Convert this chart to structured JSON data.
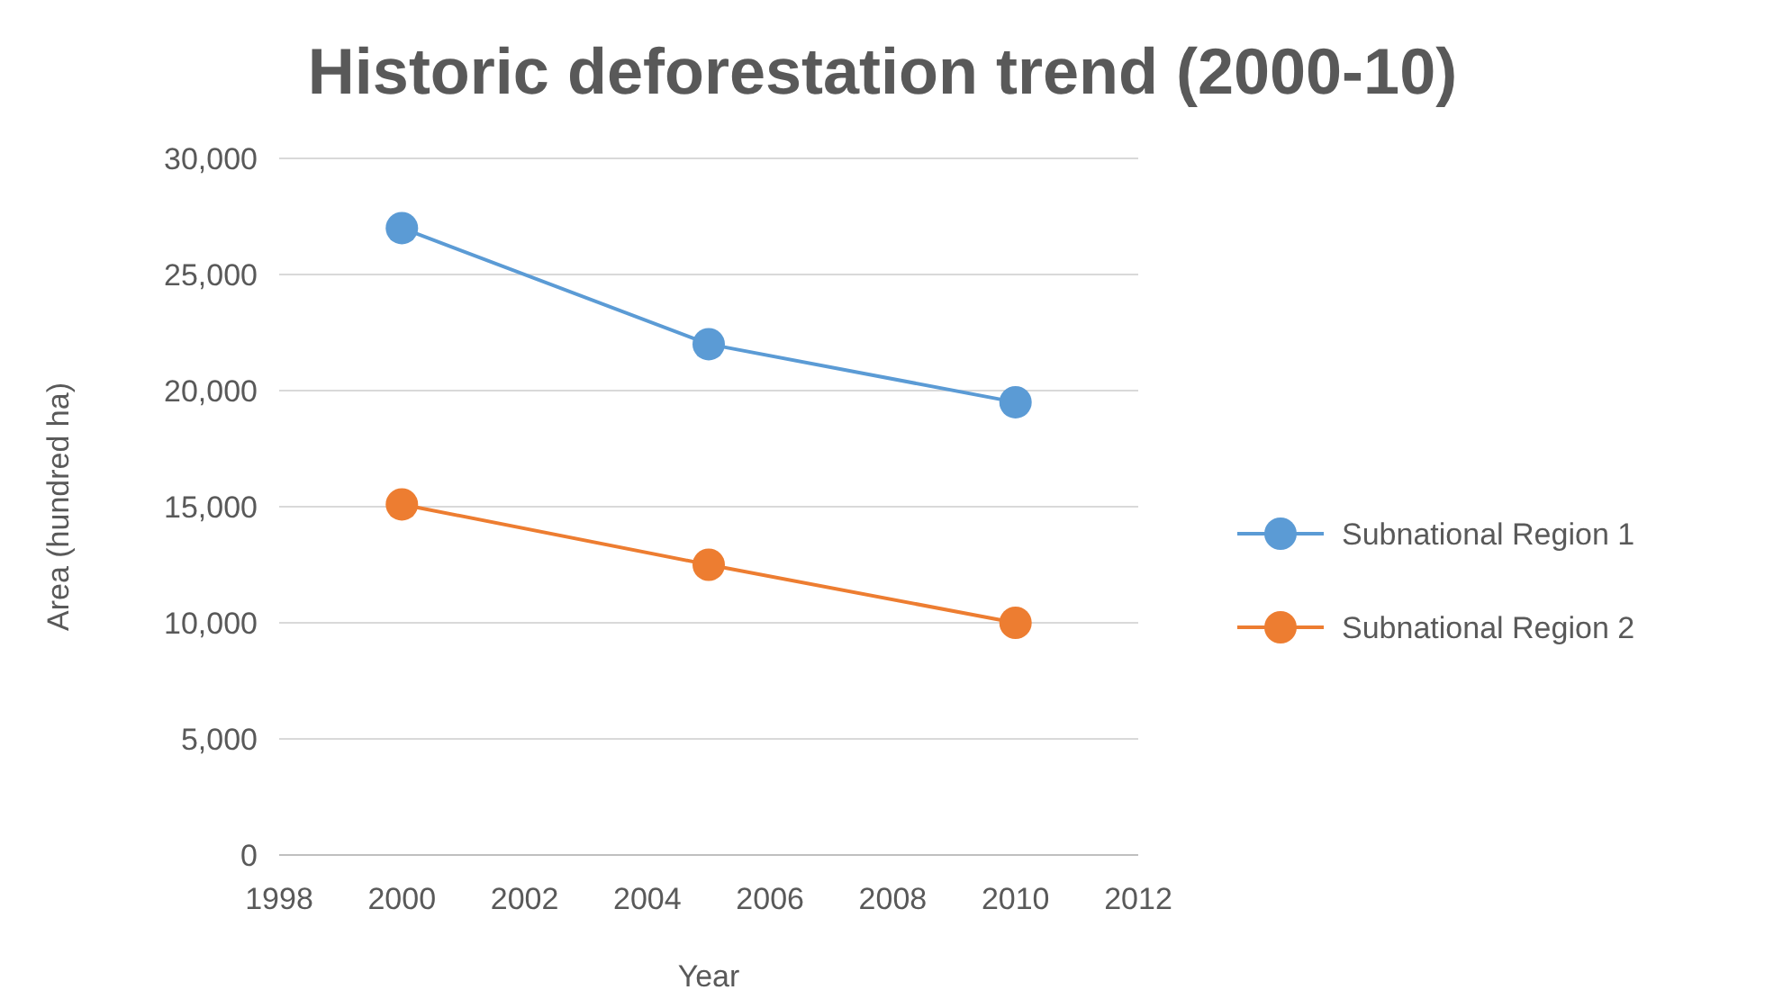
{
  "chart_data": {
    "type": "line",
    "title": "Historic deforestation trend (2000-10)",
    "xlabel": "Year",
    "ylabel": "Area (hundred ha)",
    "x": [
      2000,
      2005,
      2010
    ],
    "series": [
      {
        "name": "Subnational Region 1",
        "color": "#5b9bd5",
        "values": [
          27000,
          22000,
          19500
        ]
      },
      {
        "name": "Subnational Region 2",
        "color": "#ed7d31",
        "values": [
          15100,
          12500,
          10000
        ]
      }
    ],
    "xlim": [
      1998,
      2012
    ],
    "xticks": [
      1998,
      2000,
      2002,
      2004,
      2006,
      2008,
      2010,
      2012
    ],
    "ylim": [
      0,
      30000
    ],
    "yticks": [
      {
        "value": 0,
        "label": "0"
      },
      {
        "value": 5000,
        "label": "5,000"
      },
      {
        "value": 10000,
        "label": "10,000"
      },
      {
        "value": 15000,
        "label": "15,000"
      },
      {
        "value": 20000,
        "label": "20,000"
      },
      {
        "value": 25000,
        "label": "25,000"
      },
      {
        "value": 30000,
        "label": "30,000"
      }
    ],
    "grid": "y",
    "legend": "right",
    "marker": "circle",
    "line_style": "solid"
  }
}
